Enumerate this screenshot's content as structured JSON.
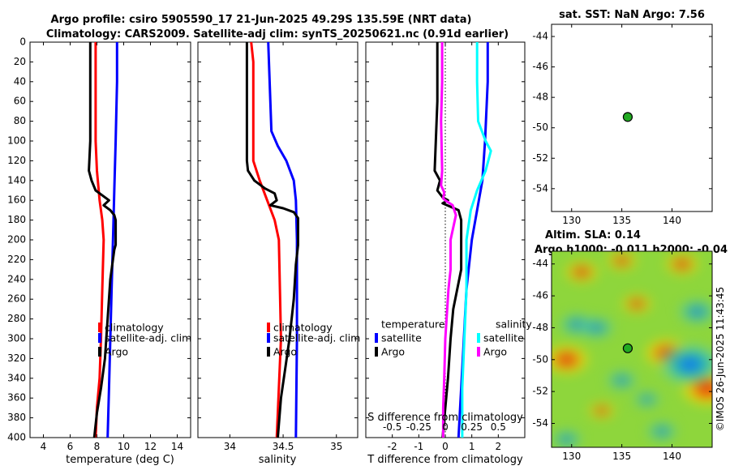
{
  "figure": {
    "title_line1": "Argo profile: csiro 5905590_17 21-Jun-2025 49.29S 135.59E (NRT data)",
    "title_line2": "Climatology: CARS2009. Satellite-adj clim: synTS_20250621.nc (0.91d earlier)",
    "sat_title": "sat. SST: NaN Argo: 7.56",
    "sla_title_line1": "Altim. SLA: 0.14",
    "sla_title_line2": "Argo h1000: -0.011 h2000: -0.04",
    "credit": "©IMOS 26-Jun-2025 11:43:45",
    "colors": {
      "climatology": "#ff0000",
      "satellite": "#0000ff",
      "argo": "#000000",
      "salinity_satellite": "#00ffff",
      "salinity_argo": "#ff00ff",
      "marker": "#22aa22"
    }
  },
  "chart_data": [
    {
      "type": "line",
      "name": "temperature",
      "xlabel": "temperature (deg C)",
      "ylabel": "",
      "xlim": [
        3,
        15
      ],
      "ylim": [
        0,
        400
      ],
      "y_reversed": true,
      "xticks": [
        4,
        6,
        8,
        10,
        12,
        14
      ],
      "xtick_labels": [
        "4",
        "6",
        "8",
        "10",
        "12",
        "14"
      ],
      "yticks": [
        0,
        20,
        40,
        60,
        80,
        100,
        120,
        140,
        160,
        180,
        200,
        220,
        240,
        260,
        280,
        300,
        320,
        340,
        360,
        380,
        400
      ],
      "ytick_labels": [
        "0",
        "20",
        "40",
        "60",
        "80",
        "100",
        "120",
        "140",
        "160",
        "180",
        "200",
        "220",
        "240",
        "260",
        "280",
        "300",
        "320",
        "340",
        "360",
        "380",
        "400"
      ],
      "legend": {
        "location": "lower-right",
        "entries": [
          "climatology",
          "satellite-adj. clim",
          "Argo"
        ]
      },
      "series": [
        {
          "name": "climatology",
          "color": "#ff0000",
          "points": [
            [
              7.9,
              0
            ],
            [
              7.9,
              40
            ],
            [
              7.9,
              100
            ],
            [
              8.0,
              130
            ],
            [
              8.2,
              160
            ],
            [
              8.4,
              180
            ],
            [
              8.5,
              200
            ],
            [
              8.4,
              250
            ],
            [
              8.3,
              300
            ],
            [
              8.2,
              340
            ],
            [
              8.0,
              370
            ],
            [
              7.9,
              400
            ]
          ]
        },
        {
          "name": "satellite-adj. clim",
          "color": "#0000ff",
          "points": [
            [
              9.5,
              0
            ],
            [
              9.5,
              40
            ],
            [
              9.4,
              100
            ],
            [
              9.3,
              150
            ],
            [
              9.2,
              200
            ],
            [
              9.1,
              250
            ],
            [
              9.0,
              300
            ],
            [
              8.9,
              350
            ],
            [
              8.8,
              400
            ]
          ]
        },
        {
          "name": "Argo",
          "color": "#000000",
          "points": [
            [
              7.5,
              0
            ],
            [
              7.5,
              50
            ],
            [
              7.5,
              100
            ],
            [
              7.4,
              130
            ],
            [
              7.6,
              140
            ],
            [
              7.9,
              150
            ],
            [
              8.4,
              155
            ],
            [
              8.9,
              160
            ],
            [
              8.5,
              165
            ],
            [
              9.0,
              170
            ],
            [
              9.3,
              175
            ],
            [
              9.4,
              180
            ],
            [
              9.4,
              205
            ],
            [
              9.3,
              210
            ],
            [
              9.0,
              240
            ],
            [
              8.8,
              280
            ],
            [
              8.6,
              320
            ],
            [
              8.3,
              350
            ],
            [
              8.0,
              375
            ],
            [
              7.8,
              400
            ]
          ]
        }
      ]
    },
    {
      "type": "line",
      "name": "salinity",
      "xlabel": "salinity",
      "ylabel": "",
      "xlim": [
        33.7,
        35.2
      ],
      "ylim": [
        0,
        400
      ],
      "y_reversed": true,
      "xticks": [
        34,
        34.5,
        35
      ],
      "xtick_labels": [
        "34",
        "34.5",
        "35"
      ],
      "legend": {
        "location": "lower-right",
        "entries": [
          "climatology",
          "satellite-adj. clim",
          "Argo"
        ]
      },
      "series": [
        {
          "name": "climatology",
          "color": "#ff0000",
          "points": [
            [
              34.2,
              0
            ],
            [
              34.22,
              20
            ],
            [
              34.22,
              60
            ],
            [
              34.22,
              120
            ],
            [
              34.28,
              140
            ],
            [
              34.35,
              160
            ],
            [
              34.42,
              180
            ],
            [
              34.46,
              200
            ],
            [
              34.47,
              250
            ],
            [
              34.48,
              300
            ],
            [
              34.46,
              350
            ],
            [
              34.44,
              400
            ]
          ]
        },
        {
          "name": "satellite-adj. clim",
          "color": "#0000ff",
          "points": [
            [
              34.36,
              0
            ],
            [
              34.37,
              30
            ],
            [
              34.38,
              60
            ],
            [
              34.39,
              90
            ],
            [
              34.45,
              105
            ],
            [
              34.53,
              120
            ],
            [
              34.6,
              140
            ],
            [
              34.62,
              160
            ],
            [
              34.63,
              200
            ],
            [
              34.63,
              300
            ],
            [
              34.62,
              400
            ]
          ]
        },
        {
          "name": "Argo",
          "color": "#000000",
          "points": [
            [
              34.16,
              0
            ],
            [
              34.16,
              60
            ],
            [
              34.16,
              120
            ],
            [
              34.17,
              130
            ],
            [
              34.23,
              140
            ],
            [
              34.33,
              148
            ],
            [
              34.42,
              153
            ],
            [
              34.44,
              160
            ],
            [
              34.38,
              165
            ],
            [
              34.5,
              168
            ],
            [
              34.6,
              172
            ],
            [
              34.64,
              178
            ],
            [
              34.64,
              205
            ],
            [
              34.62,
              225
            ],
            [
              34.6,
              260
            ],
            [
              34.56,
              300
            ],
            [
              34.52,
              330
            ],
            [
              34.48,
              360
            ],
            [
              34.45,
              400
            ]
          ]
        }
      ]
    },
    {
      "type": "line",
      "name": "difference",
      "xlabel": "T difference from climatology",
      "xlabel2": "S difference from climatology",
      "xlim": [
        -3,
        3
      ],
      "x2lim": [
        -0.75,
        0.75
      ],
      "ylim": [
        0,
        400
      ],
      "y_reversed": true,
      "xticks": [
        -2,
        -1,
        0,
        1,
        2
      ],
      "xtick_labels": [
        "-2",
        "-1",
        "0",
        "1",
        "2"
      ],
      "x2ticks": [
        -0.5,
        -0.25,
        0,
        0.25,
        0.5
      ],
      "x2tick_labels": [
        "-0.5",
        "-0.25",
        "0",
        "0.25",
        "0.5"
      ],
      "legend": {
        "location": "lower-right",
        "temperature_heading": "temperature",
        "salinity_heading": "salinity",
        "entries": [
          "satellite",
          "Argo",
          "satellite",
          "Argo"
        ]
      },
      "series": [
        {
          "name": "T satellite",
          "axis": "T",
          "color": "#0000ff",
          "points": [
            [
              1.6,
              0
            ],
            [
              1.6,
              40
            ],
            [
              1.5,
              100
            ],
            [
              1.4,
              140
            ],
            [
              1.2,
              170
            ],
            [
              1.0,
              200
            ],
            [
              0.8,
              250
            ],
            [
              0.7,
              300
            ],
            [
              0.6,
              350
            ],
            [
              0.5,
              400
            ]
          ]
        },
        {
          "name": "T Argo",
          "axis": "T",
          "color": "#000000",
          "points": [
            [
              -0.3,
              0
            ],
            [
              -0.3,
              60
            ],
            [
              -0.4,
              130
            ],
            [
              -0.2,
              140
            ],
            [
              -0.3,
              150
            ],
            [
              -0.1,
              157
            ],
            [
              0.1,
              160
            ],
            [
              -0.1,
              163
            ],
            [
              0.5,
              170
            ],
            [
              0.6,
              180
            ],
            [
              0.6,
              230
            ],
            [
              0.3,
              270
            ],
            [
              0.2,
              300
            ],
            [
              0.1,
              340
            ],
            [
              0.0,
              370
            ],
            [
              -0.1,
              400
            ]
          ]
        },
        {
          "name": "S satellite",
          "axis": "S",
          "color": "#00ffff",
          "points": [
            [
              0.3,
              0
            ],
            [
              0.3,
              40
            ],
            [
              0.31,
              80
            ],
            [
              0.38,
              100
            ],
            [
              0.43,
              110
            ],
            [
              0.38,
              130
            ],
            [
              0.3,
              150
            ],
            [
              0.24,
              170
            ],
            [
              0.2,
              200
            ],
            [
              0.2,
              250
            ],
            [
              0.18,
              300
            ],
            [
              0.16,
              350
            ],
            [
              0.16,
              400
            ]
          ]
        },
        {
          "name": "S Argo",
          "axis": "S",
          "color": "#ff00ff",
          "points": [
            [
              -0.03,
              0
            ],
            [
              -0.03,
              40
            ],
            [
              -0.04,
              80
            ],
            [
              -0.03,
              130
            ],
            [
              -0.04,
              145
            ],
            [
              -0.01,
              152
            ],
            [
              -0.02,
              158
            ],
            [
              0.0,
              160
            ],
            [
              0.07,
              165
            ],
            [
              0.1,
              175
            ],
            [
              0.05,
              200
            ],
            [
              0.05,
              230
            ],
            [
              0.03,
              250
            ],
            [
              0.0,
              300
            ],
            [
              -0.01,
              340
            ],
            [
              -0.02,
              370
            ],
            [
              -0.02,
              400
            ]
          ]
        }
      ]
    },
    {
      "type": "scatter",
      "name": "sat-sst-map",
      "title": "sat. SST: NaN Argo: 7.56",
      "xlim": [
        128,
        144
      ],
      "ylim": [
        -55.5,
        -43.2
      ],
      "xticks": [
        130,
        135,
        140
      ],
      "xtick_labels": [
        "130",
        "135",
        "140"
      ],
      "yticks": [
        -44,
        -46,
        -48,
        -50,
        -52,
        -54
      ],
      "ytick_labels": [
        "-44",
        "-46",
        "-48",
        "-50",
        "-52",
        "-54"
      ],
      "points": [
        {
          "x": 135.59,
          "y": -49.29,
          "label": "Argo"
        }
      ]
    },
    {
      "type": "heatmap",
      "name": "altimetry-map",
      "title": "Altim. SLA: 0.14",
      "xlim": [
        128,
        144
      ],
      "ylim": [
        -55.5,
        -43.2
      ],
      "xticks": [
        130,
        135,
        140
      ],
      "xtick_labels": [
        "130",
        "135",
        "140"
      ],
      "yticks": [
        -44,
        -46,
        -48,
        -50,
        -52,
        -54
      ],
      "ytick_labels": [
        "-44",
        "-46",
        "-48",
        "-50",
        "-52",
        "-54"
      ],
      "points": [
        {
          "x": 135.59,
          "y": -49.29,
          "label": "Argo"
        }
      ],
      "features": [
        {
          "x": 129.5,
          "y": -50.0,
          "sla": 0.35
        },
        {
          "x": 131.0,
          "y": -44.5,
          "sla": 0.2
        },
        {
          "x": 135.0,
          "y": -43.8,
          "sla": 0.15
        },
        {
          "x": 136.5,
          "y": -46.5,
          "sla": 0.15
        },
        {
          "x": 139.5,
          "y": -49.6,
          "sla": 0.35
        },
        {
          "x": 141.0,
          "y": -44.0,
          "sla": 0.2
        },
        {
          "x": 143.5,
          "y": -51.8,
          "sla": 0.45
        },
        {
          "x": 133.0,
          "y": -53.2,
          "sla": 0.1
        },
        {
          "x": 130.5,
          "y": -47.8,
          "sla": -0.2
        },
        {
          "x": 132.5,
          "y": -48.0,
          "sla": -0.2
        },
        {
          "x": 135.0,
          "y": -51.3,
          "sla": -0.15
        },
        {
          "x": 142.5,
          "y": -47.0,
          "sla": -0.25
        },
        {
          "x": 141.8,
          "y": -50.3,
          "sla": -0.6
        },
        {
          "x": 137.5,
          "y": -52.5,
          "sla": -0.1
        },
        {
          "x": 139.0,
          "y": -54.5,
          "sla": -0.15
        },
        {
          "x": 129.5,
          "y": -55.0,
          "sla": -0.15
        }
      ]
    }
  ]
}
